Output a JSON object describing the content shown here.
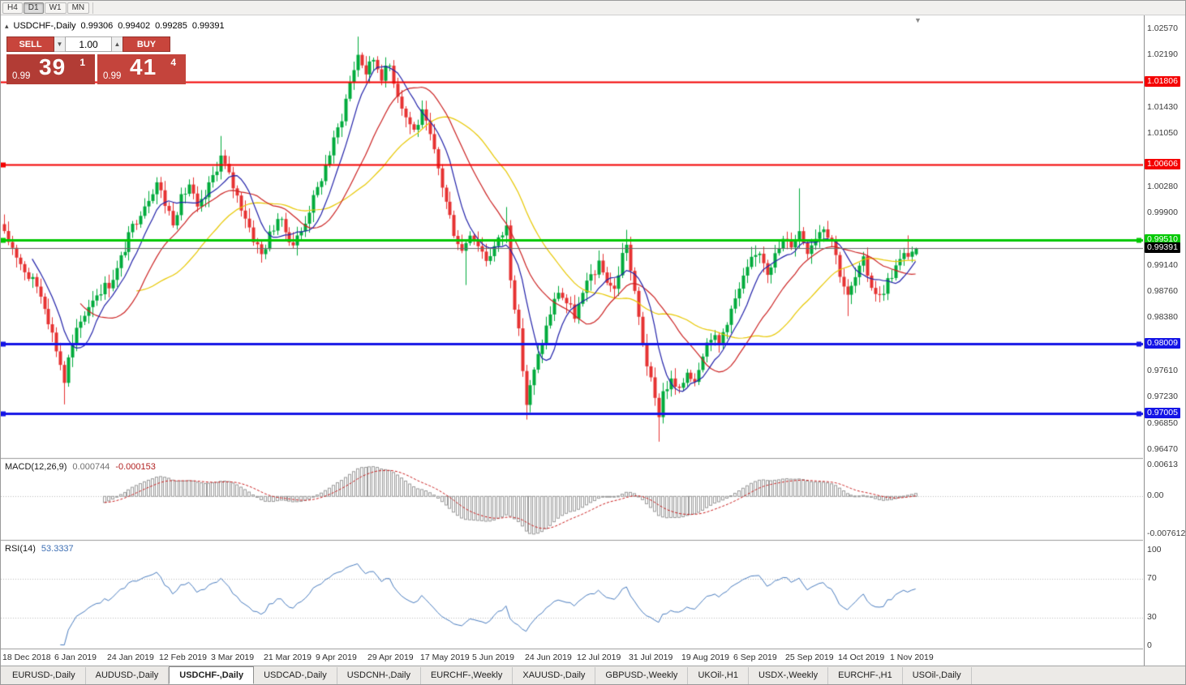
{
  "toolbar": {
    "timeframes": [
      {
        "label": "H4",
        "active": false
      },
      {
        "label": "D1",
        "active": true
      },
      {
        "label": "W1",
        "active": false
      },
      {
        "label": "MN",
        "active": false
      }
    ]
  },
  "icons": {
    "collapse": "▴",
    "volume_down": "▼",
    "volume_up": "▲",
    "shift_marker": "▼"
  },
  "quote_panel": {
    "symbol": "USDCHF-,Daily",
    "open": "0.99306",
    "high": "0.99402",
    "low": "0.99285",
    "close": "0.99391",
    "sell_label": "SELL",
    "buy_label": "BUY",
    "volume": "1.00",
    "sell_price": {
      "prefix": "0.99",
      "big": "39",
      "sup": "1"
    },
    "buy_price": {
      "prefix": "0.99",
      "big": "41",
      "sup": "4"
    }
  },
  "price_axis": {
    "gridlines": [
      "1.02570",
      "1.02190",
      "1.01430",
      "1.01050",
      "1.00280",
      "0.99900",
      "0.99140",
      "0.98760",
      "0.98380",
      "0.97610",
      "0.97230",
      "0.96850",
      "0.96470"
    ],
    "current_price": "0.99391"
  },
  "hlines": [
    {
      "price": 1.01806,
      "label": "1.01806",
      "color": "#f40000",
      "width": 2,
      "left_marker": false,
      "right_marker": false
    },
    {
      "price": 1.00606,
      "label": "1.00606",
      "color": "#f40000",
      "width": 2,
      "left_marker": true,
      "right_marker": false
    },
    {
      "price": 0.9951,
      "label": "0.99510",
      "color": "#00c800",
      "width": 3,
      "left_marker": true,
      "right_marker": true
    },
    {
      "price": 0.98009,
      "label": "0.98009",
      "color": "#1414e6",
      "width": 3,
      "left_marker": true,
      "right_marker": true
    },
    {
      "price": 0.97005,
      "label": "0.97005",
      "color": "#1414e6",
      "width": 3,
      "left_marker": true,
      "right_marker": true
    }
  ],
  "macd_panel": {
    "title": "MACD(12,26,9)",
    "value_main": "0.000744",
    "value_signal": "-0.000153",
    "axis": [
      "0.00613",
      "0.00",
      "-0.007612"
    ]
  },
  "rsi_panel": {
    "title": "RSI(14)",
    "value": "53.3337",
    "axis": [
      "100",
      "70",
      "30",
      "0"
    ],
    "levels": [
      70,
      30
    ]
  },
  "date_axis": [
    "18 Dec 2018",
    "6 Jan 2019",
    "24 Jan 2019",
    "12 Feb 2019",
    "3 Mar 2019",
    "21 Mar 2019",
    "9 Apr 2019",
    "29 Apr 2019",
    "17 May 2019",
    "5 Jun 2019",
    "24 Jun 2019",
    "12 Jul 2019",
    "31 Jul 2019",
    "19 Aug 2019",
    "6 Sep 2019",
    "25 Sep 2019",
    "14 Oct 2019",
    "1 Nov 2019"
  ],
  "tabs": [
    {
      "label": "EURUSD-,Daily",
      "active": false
    },
    {
      "label": "AUDUSD-,Daily",
      "active": false
    },
    {
      "label": "USDCHF-,Daily",
      "active": true
    },
    {
      "label": "USDCAD-,Daily",
      "active": false
    },
    {
      "label": "USDCNH-,Daily",
      "active": false
    },
    {
      "label": "EURCHF-,Weekly",
      "active": false
    },
    {
      "label": "XAUUSD-,Daily",
      "active": false
    },
    {
      "label": "GBPUSD-,Weekly",
      "active": false
    },
    {
      "label": "UKOil-,H1",
      "active": false
    },
    {
      "label": "USDX-,Weekly",
      "active": false
    },
    {
      "label": "EURCHF-,H1",
      "active": false
    },
    {
      "label": "USOil-,Daily",
      "active": false
    }
  ],
  "colors": {
    "bull": "#00ab3c",
    "bear": "#e63232",
    "ma_fast": "#2222aa",
    "ma_mid": "#cc2222",
    "ma_slow": "#e8c800",
    "macd_hist": "#9a9a9a",
    "macd_signal": "#cc2222",
    "rsi": "#4a7dc0",
    "current_price_line": "#666666"
  },
  "chart_data": {
    "type": "candlestick",
    "symbol": "USDCHF",
    "timeframe": "Daily",
    "ohlc_current": {
      "open": 0.99306,
      "high": 0.99402,
      "low": 0.99285,
      "close": 0.99391
    },
    "price_axis_range": [
      0.964,
      1.0265
    ],
    "macd_axis_range": [
      -0.0082,
      0.007
    ],
    "rsi_range": [
      0,
      100
    ],
    "candles_count": 228,
    "candle_spacing": 4.95,
    "date_label_interval": 13,
    "ma_periods": [
      8,
      20,
      34
    ],
    "macd_params": [
      12,
      26,
      9
    ],
    "rsi_period": 14,
    "price_anchors": [
      [
        0,
        0.9958
      ],
      [
        2,
        0.9942
      ],
      [
        4,
        0.9918
      ],
      [
        6,
        0.9898
      ],
      [
        8,
        0.9885
      ],
      [
        10,
        0.9858
      ],
      [
        12,
        0.9815
      ],
      [
        14,
        0.9772
      ],
      [
        15,
        0.9746
      ],
      [
        16,
        0.9778
      ],
      [
        18,
        0.9818
      ],
      [
        20,
        0.9845
      ],
      [
        22,
        0.9868
      ],
      [
        24,
        0.988
      ],
      [
        26,
        0.9888
      ],
      [
        28,
        0.9908
      ],
      [
        30,
        0.994
      ],
      [
        32,
        0.997
      ],
      [
        34,
        0.9994
      ],
      [
        36,
        1.0014
      ],
      [
        38,
        1.0036
      ],
      [
        40,
        1.0004
      ],
      [
        42,
        0.998
      ],
      [
        44,
        1.001
      ],
      [
        46,
        1.0032
      ],
      [
        48,
        0.9994
      ],
      [
        50,
        1.0014
      ],
      [
        52,
        1.0044
      ],
      [
        54,
        1.0072
      ],
      [
        56,
        1.0044
      ],
      [
        58,
        1.0014
      ],
      [
        60,
        0.9986
      ],
      [
        62,
        0.9954
      ],
      [
        64,
        0.993
      ],
      [
        66,
        0.9958
      ],
      [
        68,
        0.9984
      ],
      [
        70,
        0.9964
      ],
      [
        72,
        0.9946
      ],
      [
        74,
        0.9964
      ],
      [
        76,
        0.9996
      ],
      [
        78,
        1.0024
      ],
      [
        80,
        1.006
      ],
      [
        82,
        1.0094
      ],
      [
        84,
        1.013
      ],
      [
        86,
        1.018
      ],
      [
        88,
        1.022
      ],
      [
        90,
        1.0194
      ],
      [
        92,
        1.0214
      ],
      [
        94,
        1.019
      ],
      [
        96,
        1.0204
      ],
      [
        98,
        1.0164
      ],
      [
        100,
        1.013
      ],
      [
        102,
        1.011
      ],
      [
        104,
        1.0134
      ],
      [
        106,
        1.01
      ],
      [
        108,
        1.0054
      ],
      [
        110,
        1.0006
      ],
      [
        112,
        0.9964
      ],
      [
        114,
        0.9936
      ],
      [
        116,
        0.9964
      ],
      [
        118,
        0.9946
      ],
      [
        120,
        0.9924
      ],
      [
        123,
        0.995
      ],
      [
        125,
        0.997
      ],
      [
        126,
        0.99
      ],
      [
        128,
        0.9816
      ],
      [
        130,
        0.9714
      ],
      [
        132,
        0.976
      ],
      [
        134,
        0.9804
      ],
      [
        136,
        0.9846
      ],
      [
        138,
        0.9878
      ],
      [
        140,
        0.986
      ],
      [
        142,
        0.9842
      ],
      [
        144,
        0.987
      ],
      [
        146,
        0.99
      ],
      [
        148,
        0.9914
      ],
      [
        150,
        0.9894
      ],
      [
        152,
        0.9878
      ],
      [
        154,
        0.993
      ],
      [
        155,
        0.9948
      ],
      [
        156,
        0.9906
      ],
      [
        158,
        0.9838
      ],
      [
        160,
        0.9772
      ],
      [
        162,
        0.9718
      ],
      [
        163,
        0.97
      ],
      [
        164,
        0.9732
      ],
      [
        166,
        0.9746
      ],
      [
        168,
        0.973
      ],
      [
        170,
        0.9762
      ],
      [
        172,
        0.975
      ],
      [
        174,
        0.979
      ],
      [
        176,
        0.9814
      ],
      [
        178,
        0.98
      ],
      [
        180,
        0.9836
      ],
      [
        182,
        0.9864
      ],
      [
        184,
        0.9894
      ],
      [
        186,
        0.992
      ],
      [
        188,
        0.9936
      ],
      [
        190,
        0.9908
      ],
      [
        192,
        0.9928
      ],
      [
        194,
        0.995
      ],
      [
        196,
        0.9946
      ],
      [
        198,
        0.9964
      ],
      [
        200,
        0.9938
      ],
      [
        202,
        0.9958
      ],
      [
        204,
        0.9972
      ],
      [
        206,
        0.9952
      ],
      [
        208,
        0.9904
      ],
      [
        210,
        0.9868
      ],
      [
        212,
        0.9896
      ],
      [
        214,
        0.992
      ],
      [
        216,
        0.9886
      ],
      [
        218,
        0.9868
      ],
      [
        220,
        0.9892
      ],
      [
        222,
        0.9912
      ],
      [
        224,
        0.9928
      ],
      [
        227,
        0.9939
      ]
    ],
    "high_overrides": {
      "54": 1.0102,
      "88": 1.0246,
      "125": 0.9999,
      "155": 0.9966,
      "198": 1.0026,
      "225": 0.9958
    },
    "low_overrides": {
      "15": 0.9713,
      "115": 0.9886,
      "130": 0.9691,
      "163": 0.9659,
      "210": 0.9841
    }
  }
}
